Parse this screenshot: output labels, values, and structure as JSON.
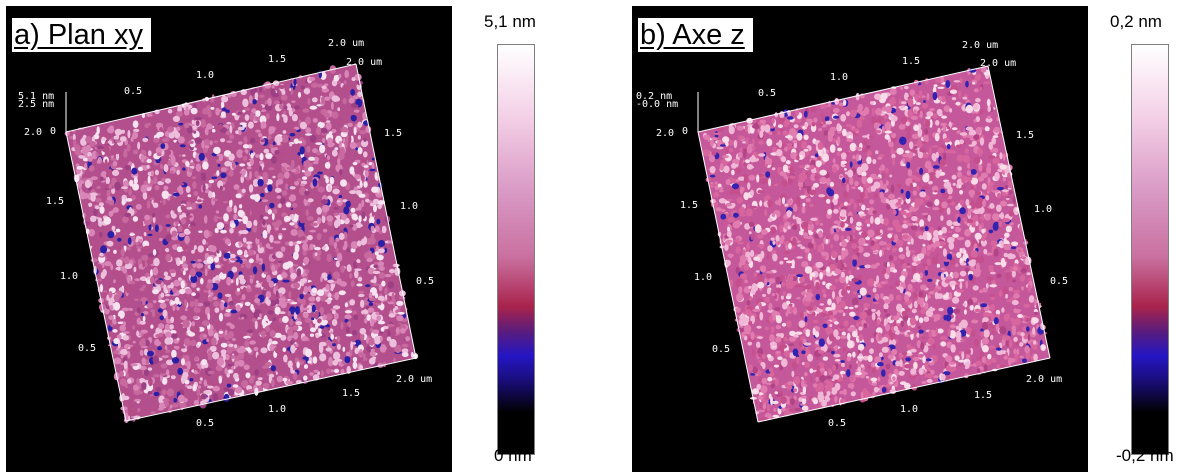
{
  "panels": [
    {
      "id": "a",
      "title": "a) Plan xy",
      "z_labels": [
        "5.1 nm",
        "2.5 nm",
        "0"
      ],
      "edge_top": [
        "0.5",
        "1.0",
        "1.5",
        "2.0 um",
        "2.0 um"
      ],
      "edge_left": [
        "2.0",
        "1.5",
        "1.0",
        "0.5"
      ],
      "edge_right": [
        "1.5",
        "1.0",
        "0.5"
      ],
      "edge_bottom": [
        "0.5",
        "1.0",
        "1.5",
        "2.0 um"
      ],
      "scale_max": "5,1 nm",
      "scale_min": "0 nm",
      "surface_colors": [
        "#c7689f",
        "#d985b8",
        "#ecbfdc",
        "#b44d88",
        "#f5e3ef",
        "#9c3f84",
        "#2b1fa6"
      ]
    },
    {
      "id": "b",
      "title": "b) Axe z",
      "z_labels": [
        "0.2 nm",
        "-0.0 nm",
        "0"
      ],
      "edge_top": [
        "0.5",
        "1.0",
        "1.5",
        "2.0 um",
        "2.0 um"
      ],
      "edge_left": [
        "2.0",
        "1.5",
        "1.0",
        "0.5"
      ],
      "edge_right": [
        "1.5",
        "1.0",
        "0.5"
      ],
      "edge_bottom": [
        "0.5",
        "1.0",
        "1.5",
        "2.0 um"
      ],
      "scale_max": "0,2 nm",
      "scale_min": "-0,2 nm",
      "surface_colors": [
        "#d8669e",
        "#e07cb0",
        "#f0b8d6",
        "#c44f8c",
        "#f8dde9",
        "#b14487",
        "#3423b0"
      ]
    }
  ]
}
